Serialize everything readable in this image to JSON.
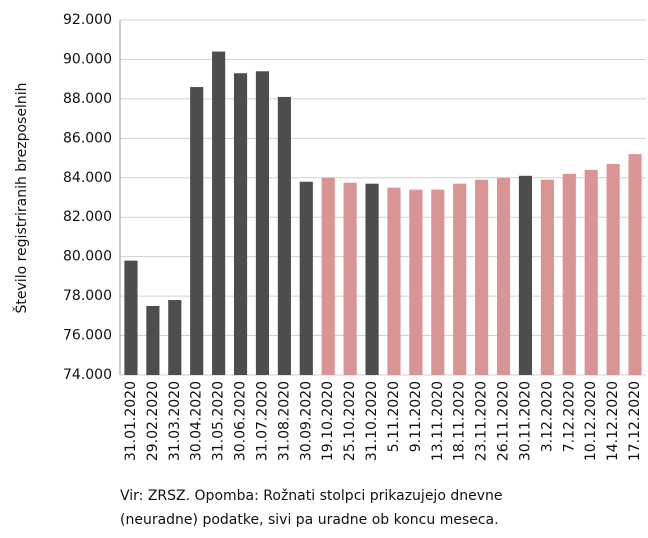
{
  "chart_data": {
    "type": "bar",
    "y_label": "Število registriranih brezposelnih",
    "categories": [
      "31.01.2020",
      "29.02.2020",
      "31.03.2020",
      "30.04.2020",
      "31.05.2020",
      "30.06.2020",
      "31.07.2020",
      "31.08.2020",
      "30.09.2020",
      "19.10.2020",
      "25.10.2020",
      "31.10.2020",
      "5.11.2020",
      "9.11.2020",
      "13.11.2020",
      "18.11.2020",
      "23.11.2020",
      "26.11.2020",
      "30.11.2020",
      "3.12.2020",
      "7.12.2020",
      "10.12.2020",
      "14.12.2020",
      "17.12.2020"
    ],
    "values": [
      79800,
      77500,
      77800,
      88600,
      90400,
      89300,
      89400,
      88100,
      83800,
      84000,
      83750,
      83700,
      83500,
      83400,
      83400,
      83700,
      83900,
      84000,
      84100,
      83900,
      84200,
      84400,
      84700,
      85200
    ],
    "colors": [
      "#4d4d4d",
      "#4d4d4d",
      "#4d4d4d",
      "#4d4d4d",
      "#4d4d4d",
      "#4d4d4d",
      "#4d4d4d",
      "#4d4d4d",
      "#4d4d4d",
      "#d99594",
      "#d99594",
      "#4d4d4d",
      "#d99594",
      "#d99594",
      "#d99594",
      "#d99594",
      "#d99594",
      "#d99594",
      "#4d4d4d",
      "#d99594",
      "#d99594",
      "#d99594",
      "#d99594",
      "#d99594"
    ],
    "ylim": [
      74000,
      92000
    ],
    "yticks": [
      {
        "value": 74000,
        "label": "74.000"
      },
      {
        "value": 76000,
        "label": "76.000"
      },
      {
        "value": 78000,
        "label": "78.000"
      },
      {
        "value": 80000,
        "label": "80.000"
      },
      {
        "value": 82000,
        "label": "82.000"
      },
      {
        "value": 84000,
        "label": "84.000"
      },
      {
        "value": 86000,
        "label": "86.000"
      },
      {
        "value": 88000,
        "label": "88.000"
      },
      {
        "value": 90000,
        "label": "90.000"
      },
      {
        "value": 92000,
        "label": "92.000"
      }
    ],
    "grid": true,
    "note": [
      "Vir: ZRSZ. Opomba: Rožnati stolpci prikazujejo dnevne",
      "(neuradne) podatke, sivi pa uradne ob koncu meseca."
    ]
  }
}
